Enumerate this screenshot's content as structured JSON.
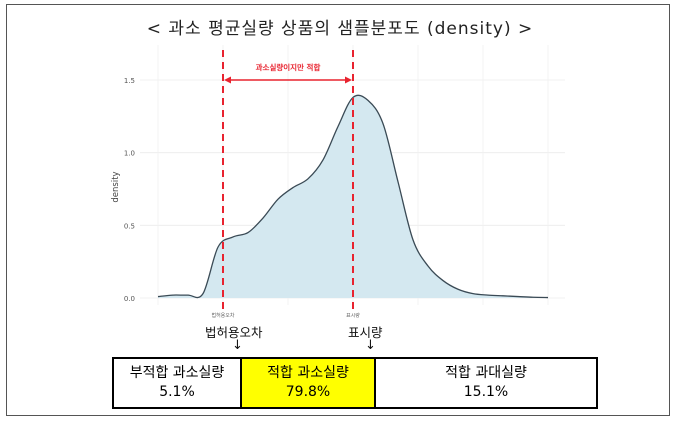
{
  "title": "< 과소 평균실량 상품의 샘플분포도 (density) >",
  "chart_data": {
    "type": "area",
    "ylabel": "density",
    "ylim": [
      0,
      1.5
    ],
    "yticks": [
      "0.0",
      "0.5",
      "1.0",
      "1.5"
    ],
    "x_tick_labels": [
      "법허용오차",
      "표시량"
    ],
    "series": [
      {
        "values": [
          0.01,
          0.02,
          0.02,
          0.03,
          0.35,
          0.42,
          0.45,
          0.55,
          0.68,
          0.76,
          0.82,
          0.95,
          1.18,
          1.38,
          1.36,
          1.2,
          0.8,
          0.4,
          0.22,
          0.12,
          0.06,
          0.03,
          0.02,
          0.015,
          0.01,
          0.005,
          0.003
        ]
      }
    ],
    "fill_color": "#d4e8f0",
    "line_color": "#3a4a55",
    "annotation": "과소실량이지만 적합",
    "annotation_color": "#e8232f"
  },
  "below_labels": {
    "tolerance": "법허용오차",
    "labeled_qty": "표시량",
    "arrow": "↓"
  },
  "summary_table": [
    {
      "label": "부적합 과소실량",
      "value": "5.1%"
    },
    {
      "label": "적합 과소실량",
      "value": "79.8%"
    },
    {
      "label": "적합 과대실량",
      "value": "15.1%"
    }
  ]
}
